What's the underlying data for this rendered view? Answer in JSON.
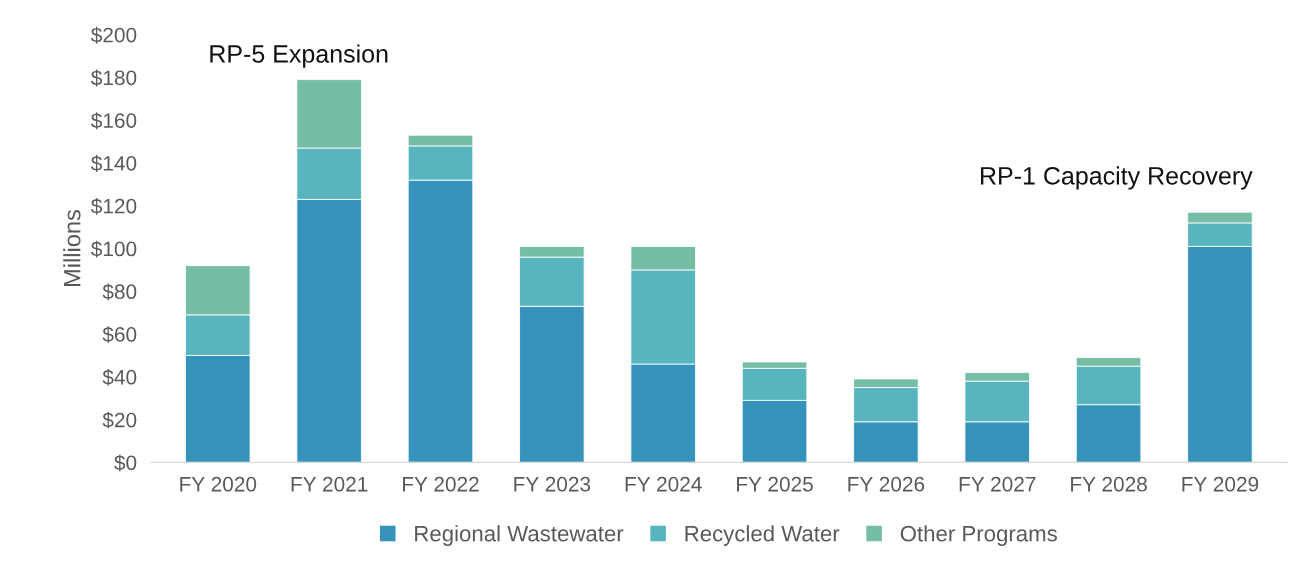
{
  "chart_data": {
    "type": "bar",
    "stacked": true,
    "ylabel": "Millions",
    "categories": [
      "FY 2020",
      "FY 2021",
      "FY 2022",
      "FY 2023",
      "FY 2024",
      "FY 2025",
      "FY 2026",
      "FY 2027",
      "FY 2028",
      "FY 2029"
    ],
    "series": [
      {
        "name": "Regional Wastewater",
        "color": "#3593bb",
        "values": [
          50,
          123,
          132,
          73,
          46,
          29,
          19,
          19,
          27,
          101
        ]
      },
      {
        "name": "Recycled Water",
        "color": "#58b5bf",
        "values": [
          19,
          24,
          16,
          23,
          44,
          15,
          16,
          19,
          18,
          11
        ]
      },
      {
        "name": "Other Programs",
        "color": "#76bda5",
        "values": [
          23,
          32,
          5,
          5,
          11,
          3,
          4,
          4,
          4,
          5
        ]
      }
    ],
    "ylim": [
      0,
      200
    ],
    "yticks": [
      {
        "value": 0,
        "label": "$0"
      },
      {
        "value": 20,
        "label": "$20"
      },
      {
        "value": 40,
        "label": "$40"
      },
      {
        "value": 60,
        "label": "$60"
      },
      {
        "value": 80,
        "label": "$80"
      },
      {
        "value": 100,
        "label": "$100"
      },
      {
        "value": 120,
        "label": "$120"
      },
      {
        "value": 140,
        "label": "$140"
      },
      {
        "value": 160,
        "label": "$160"
      },
      {
        "value": 180,
        "label": "$180"
      },
      {
        "value": 200,
        "label": "$200"
      }
    ],
    "annotations": [
      "RP-5 Expansion",
      "RP-1 Capacity Recovery"
    ],
    "grid": false,
    "legend": "bottom"
  }
}
